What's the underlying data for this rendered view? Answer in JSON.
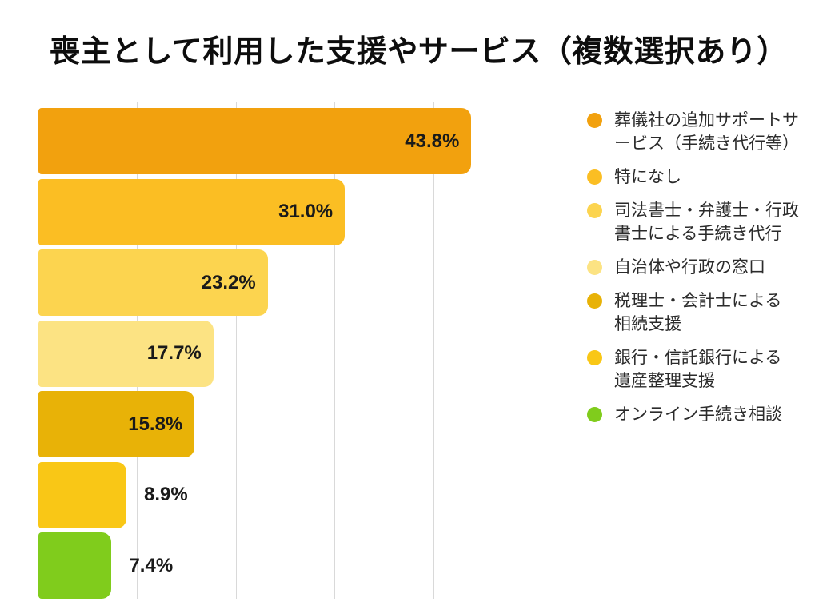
{
  "title": "喪主として利用した支援やサービス（複数選択あり）",
  "chart_data": {
    "type": "bar",
    "orientation": "horizontal",
    "title": "喪主として利用した支援やサービス（複数選択あり）",
    "categories": [
      "葬儀社の追加サポートサービス（手続き代行等）",
      "特になし",
      "司法書士・弁護士・行政書士による手続き代行",
      "自治体や行政の窓口",
      "税理士・会計士による相続支援",
      "銀行・信託銀行による遺産整理支援",
      "オンライン手続き相談"
    ],
    "values": [
      43.8,
      31.0,
      23.2,
      17.7,
      15.8,
      8.9,
      7.4
    ],
    "value_labels": [
      "43.8%",
      "31.0%",
      "23.2%",
      "17.7%",
      "15.8%",
      "8.9%",
      "7.4%"
    ],
    "value_label_positions": [
      "inside",
      "inside",
      "inside",
      "inside",
      "inside",
      "outside",
      "outside"
    ],
    "colors": [
      "#F2A10E",
      "#FBBE23",
      "#FCD44F",
      "#FCE383",
      "#E8B207",
      "#F9C716",
      "#80CC1C"
    ],
    "xlim": [
      0,
      50
    ],
    "gridline_interval": 10,
    "grid": true,
    "gridline_color": "#d9d9d9",
    "legend_position": "right",
    "legend_wrapped_labels": [
      "葬儀社の追加サポートサ\nービス（手続き代行等）",
      "特になし",
      "司法書士・弁護士・行政\n書士による手続き代行",
      "自治体や行政の窓口",
      "税理士・会計士による\n相続支援",
      "銀行・信託銀行による\n遺産整理支援",
      "オンライン手続き相談"
    ]
  }
}
